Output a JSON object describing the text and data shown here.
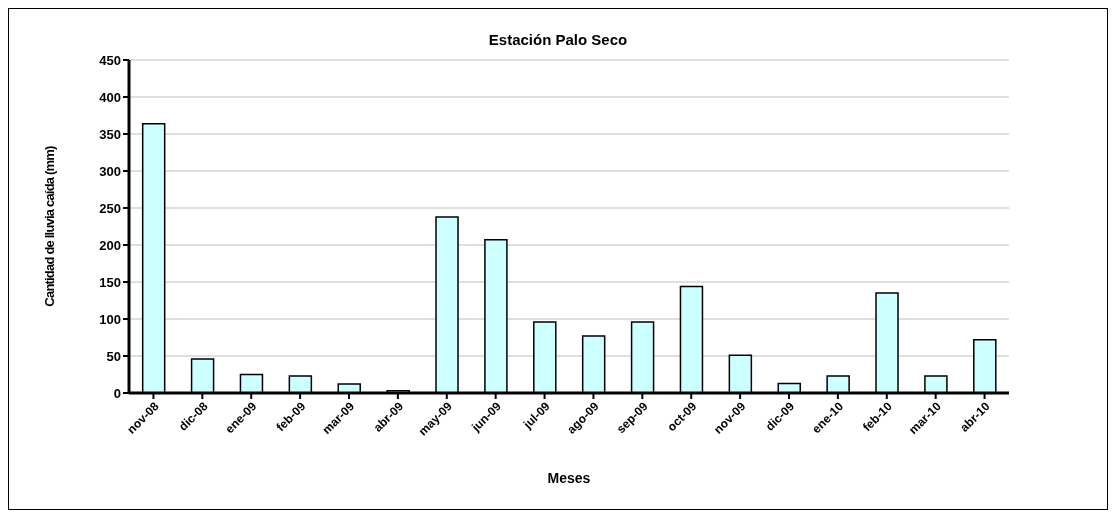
{
  "chart_data": {
    "type": "bar",
    "title": "Estación Palo Seco",
    "xlabel": "Meses",
    "ylabel": "Cantidad de lluvia caída (mm)",
    "categories": [
      "nov-08",
      "dic-08",
      "ene-09",
      "feb-09",
      "mar-09",
      "abr-09",
      "may-09",
      "jun-09",
      "jul-09",
      "ago-09",
      "sep-09",
      "oct-09",
      "nov-09",
      "dic-09",
      "ene-10",
      "feb-10",
      "mar-10",
      "abr-10"
    ],
    "values": [
      364,
      46,
      25,
      23,
      12,
      3,
      238,
      207,
      96,
      77,
      96,
      144,
      51,
      13,
      23,
      135,
      23,
      72
    ],
    "color": "#ccffff",
    "ylim": [
      0,
      450
    ],
    "yticks": [
      0,
      50,
      100,
      150,
      200,
      250,
      300,
      350,
      400,
      450
    ],
    "grid": "y"
  }
}
